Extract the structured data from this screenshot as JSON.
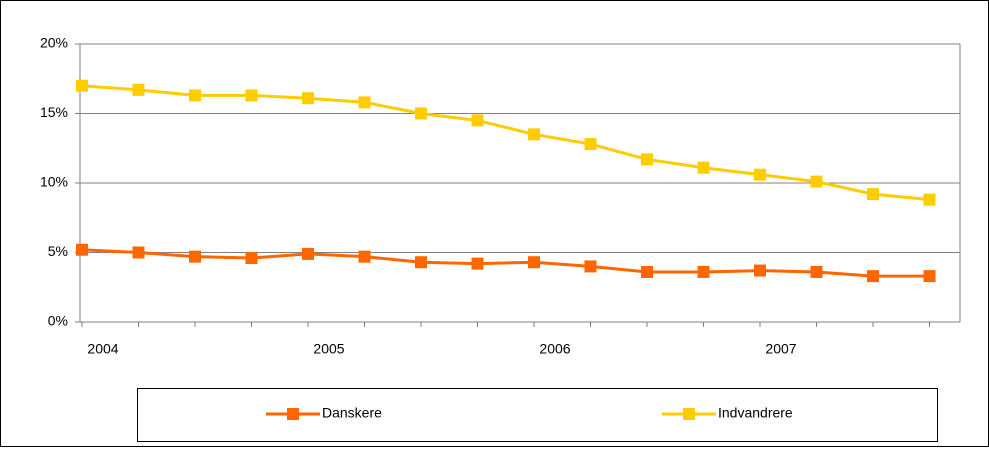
{
  "chart_data": {
    "type": "line",
    "categories": [
      "2004",
      null,
      null,
      null,
      "2005",
      null,
      null,
      null,
      "2006",
      null,
      null,
      null,
      "2007",
      null,
      null,
      null
    ],
    "series": [
      {
        "name": "Danskere",
        "color": "#ff6600",
        "values": [
          5.2,
          5.0,
          4.7,
          4.6,
          4.9,
          4.7,
          4.3,
          4.2,
          4.3,
          4.0,
          3.6,
          3.6,
          3.7,
          3.6,
          3.3,
          3.3
        ]
      },
      {
        "name": "Indvandrere",
        "color": "#ffcc00",
        "values": [
          17.0,
          16.7,
          16.3,
          16.3,
          16.1,
          15.8,
          15.0,
          14.5,
          13.5,
          12.8,
          11.7,
          11.1,
          10.6,
          10.1,
          9.2,
          8.8
        ]
      }
    ],
    "ylim": [
      0,
      20
    ],
    "yticks": [
      {
        "value": 0,
        "label": "0%"
      },
      {
        "value": 5,
        "label": "5%"
      },
      {
        "value": 10,
        "label": "10%"
      },
      {
        "value": 15,
        "label": "15%"
      },
      {
        "value": 20,
        "label": "20%"
      }
    ],
    "grid": true
  }
}
